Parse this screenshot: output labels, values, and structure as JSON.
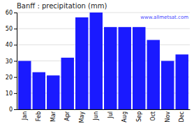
{
  "chart_data": {
    "type": "bar",
    "title": "Banff : precipitation (mm)",
    "categories": [
      "Jan",
      "Feb",
      "Mar",
      "Apr",
      "May",
      "Jun",
      "Jul",
      "Aug",
      "Sep",
      "Oct",
      "Nov",
      "Dec"
    ],
    "values": [
      30,
      23,
      21,
      32,
      57,
      60,
      51,
      51,
      51,
      43,
      30,
      34
    ],
    "color": "#1a1aff",
    "ylim": [
      0,
      60
    ],
    "yticks": [
      0,
      10,
      20,
      30,
      40,
      50,
      60
    ],
    "grid": true,
    "annotations": [
      "www.allmetsat.com"
    ]
  }
}
